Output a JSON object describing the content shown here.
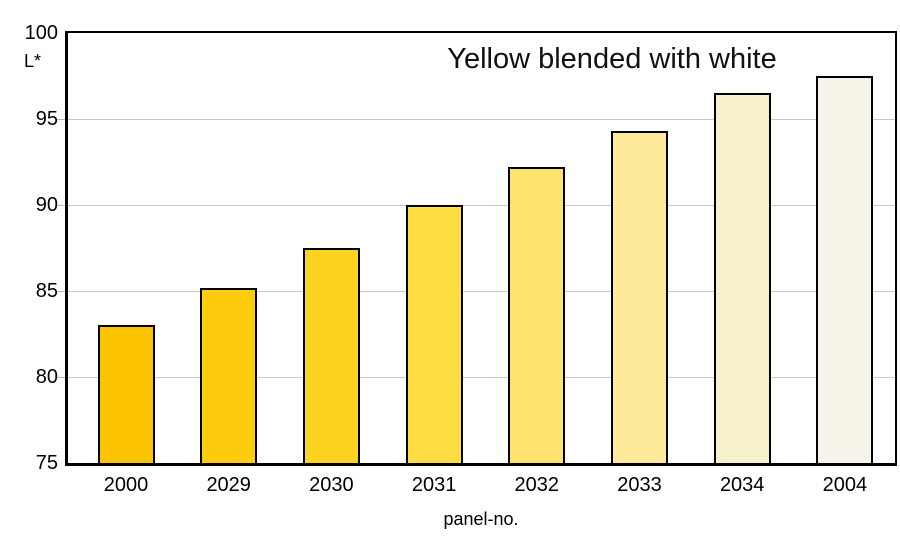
{
  "figure": {
    "title": "Yellow blended with white",
    "y_axis_label": "L*",
    "x_axis_label": "panel-no."
  },
  "chart_data": {
    "type": "bar",
    "title": "Yellow blended with white",
    "xlabel": "panel-no.",
    "ylabel": "L*",
    "categories": [
      "2000",
      "2029",
      "2030",
      "2031",
      "2032",
      "2033",
      "2034",
      "2004"
    ],
    "values": [
      83.0,
      85.2,
      87.5,
      90.0,
      92.2,
      94.3,
      96.5,
      97.5
    ],
    "bar_colors": [
      "#fcc400",
      "#fccc0d",
      "#fcd41f",
      "#fddc44",
      "#fde36d",
      "#fdeb9b",
      "#f6f0cb",
      "#f6f4e8"
    ],
    "bar_border_color": "#000000",
    "gridline_color": "#c8c8c8",
    "ylim": [
      75,
      100
    ],
    "y_ticks": [
      100,
      95,
      90,
      85,
      80,
      75
    ],
    "grid": true,
    "legend": "none",
    "background": "#ffffff"
  }
}
